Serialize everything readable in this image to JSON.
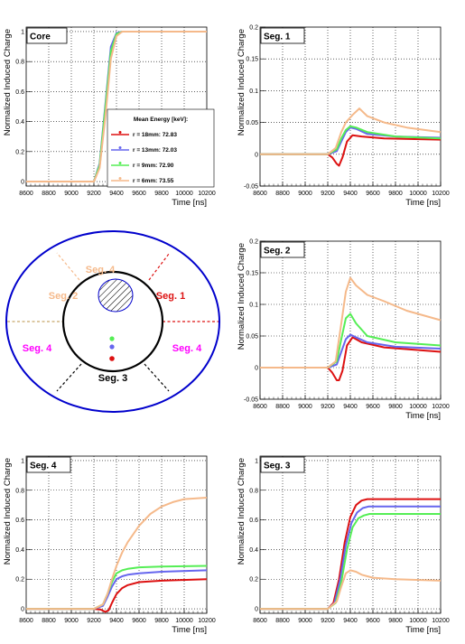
{
  "colors": {
    "r18": "#dd1111",
    "r13": "#6666ee",
    "r9": "#55ee55",
    "r6": "#f5b98a",
    "ring": "#0000cc",
    "grid": "#000000"
  },
  "legend": {
    "title": "Mean Energy [keV]:",
    "entries": [
      "r = 18mm: 72.83",
      "r = 13mm: 72.03",
      "r = 9mm: 72.90",
      "r = 6mm: 73.55"
    ]
  },
  "diagram": {
    "labels": [
      {
        "text": "Seg. 4",
        "color": "#f5b98a"
      },
      {
        "text": "Seg. 2",
        "color": "#f5b98a"
      },
      {
        "text": "Seg. 1",
        "color": "#dd1111"
      },
      {
        "text": "Seg. 4",
        "color": "#ff00ff"
      },
      {
        "text": "Seg. 4",
        "color": "#ff00ff"
      },
      {
        "text": "Seg. 3",
        "color": "#000000"
      }
    ]
  },
  "chart_data": [
    {
      "type": "line",
      "title": "Core",
      "xlabel": "Time [ns]",
      "ylabel": "Normalized Induced Charge",
      "xlim": [
        8600,
        10200
      ],
      "ylim": [
        -0.03,
        1.03
      ],
      "xticks": [
        8600,
        8800,
        9000,
        9200,
        9400,
        9600,
        9800,
        10000,
        10200
      ],
      "yticks": [
        0,
        0.2,
        0.4,
        0.6,
        0.8,
        1
      ],
      "ytick_labels": [
        "0",
        "0.2",
        "0.4",
        "0.6",
        "0.8",
        "1"
      ],
      "grid": true,
      "legend": "bottom-right",
      "series": [
        {
          "name": "r = 18mm: 72.83",
          "color_key": "r18",
          "x": [
            8600,
            9200,
            9250,
            9300,
            9350,
            9400,
            9450,
            9500,
            10200
          ],
          "values": [
            0,
            0,
            0.1,
            0.45,
            0.85,
            0.98,
            1,
            1,
            1
          ]
        },
        {
          "name": "r = 13mm: 72.03",
          "color_key": "r13",
          "x": [
            8600,
            9200,
            9250,
            9300,
            9350,
            9400,
            9450,
            9500,
            10200
          ],
          "values": [
            0,
            0,
            0.12,
            0.5,
            0.9,
            0.99,
            1,
            1,
            1
          ]
        },
        {
          "name": "r = 9mm: 72.90",
          "color_key": "r9",
          "x": [
            8600,
            9200,
            9250,
            9300,
            9350,
            9400,
            9450,
            9500,
            10200
          ],
          "values": [
            0,
            0,
            0.11,
            0.48,
            0.87,
            0.985,
            1,
            1,
            1
          ]
        },
        {
          "name": "r = 6mm: 73.55",
          "color_key": "r6",
          "x": [
            8600,
            9200,
            9250,
            9300,
            9350,
            9400,
            9450,
            9500,
            10200
          ],
          "values": [
            0,
            0,
            0.09,
            0.42,
            0.82,
            0.97,
            1,
            1,
            1
          ]
        }
      ]
    },
    {
      "type": "line",
      "title": "Seg. 1",
      "xlabel": "Time [ns]",
      "ylabel": "Normalized Induced Charge",
      "xlim": [
        8600,
        10200
      ],
      "ylim": [
        -0.05,
        0.2
      ],
      "xticks": [
        8600,
        8800,
        9000,
        9200,
        9400,
        9600,
        9800,
        10000,
        10200
      ],
      "yticks": [
        -0.05,
        0,
        0.05,
        0.1,
        0.15,
        0.2
      ],
      "ytick_labels": [
        "-0.05",
        "0",
        "0.05",
        "0.1",
        "0.15",
        "0.2"
      ],
      "grid": true,
      "series": [
        {
          "name": "r = 18mm",
          "color_key": "r18",
          "x": [
            8600,
            9200,
            9240,
            9280,
            9300,
            9330,
            9370,
            9420,
            9500,
            9700,
            10200
          ],
          "values": [
            0,
            0,
            -0.005,
            -0.015,
            -0.018,
            -0.005,
            0.02,
            0.03,
            0.028,
            0.025,
            0.023
          ]
        },
        {
          "name": "r = 13mm",
          "color_key": "r13",
          "x": [
            8600,
            9200,
            9280,
            9320,
            9360,
            9400,
            9450,
            9550,
            9800,
            10200
          ],
          "values": [
            0,
            0,
            0.005,
            0.02,
            0.035,
            0.042,
            0.04,
            0.032,
            0.028,
            0.026
          ]
        },
        {
          "name": "r = 9mm",
          "color_key": "r9",
          "x": [
            8600,
            9200,
            9280,
            9320,
            9360,
            9400,
            9450,
            9550,
            9800,
            10200
          ],
          "values": [
            0,
            0,
            0.008,
            0.025,
            0.038,
            0.044,
            0.042,
            0.035,
            0.028,
            0.025
          ]
        },
        {
          "name": "r = 6mm",
          "color_key": "r6",
          "x": [
            8600,
            9200,
            9270,
            9320,
            9360,
            9420,
            9480,
            9550,
            9700,
            9900,
            10200
          ],
          "values": [
            0,
            0,
            0.01,
            0.035,
            0.05,
            0.062,
            0.072,
            0.06,
            0.05,
            0.042,
            0.035
          ]
        }
      ]
    },
    {
      "type": "line",
      "title": "Seg. 2",
      "xlabel": "Time [ns]",
      "ylabel": "Normalized Induced Charge",
      "xlim": [
        8600,
        10200
      ],
      "ylim": [
        -0.05,
        0.2
      ],
      "xticks": [
        8600,
        8800,
        9000,
        9200,
        9400,
        9600,
        9800,
        10000,
        10200
      ],
      "yticks": [
        -0.05,
        0,
        0.05,
        0.1,
        0.15,
        0.2
      ],
      "ytick_labels": [
        "-0.05",
        "0",
        "0.05",
        "0.1",
        "0.15",
        "0.2"
      ],
      "grid": true,
      "series": [
        {
          "name": "r = 18mm",
          "color_key": "r18",
          "x": [
            8600,
            9200,
            9240,
            9280,
            9300,
            9330,
            9370,
            9420,
            9500,
            9700,
            10200
          ],
          "values": [
            0,
            0,
            -0.008,
            -0.02,
            -0.02,
            -0.005,
            0.035,
            0.048,
            0.04,
            0.032,
            0.025
          ]
        },
        {
          "name": "r = 13mm",
          "color_key": "r13",
          "x": [
            8600,
            9200,
            9280,
            9320,
            9360,
            9400,
            9450,
            9550,
            9800,
            10200
          ],
          "values": [
            0,
            0,
            0.005,
            0.025,
            0.045,
            0.052,
            0.048,
            0.04,
            0.033,
            0.03
          ]
        },
        {
          "name": "r = 9mm",
          "color_key": "r9",
          "x": [
            8600,
            9200,
            9280,
            9320,
            9360,
            9400,
            9450,
            9550,
            9800,
            10200
          ],
          "values": [
            0,
            0,
            0.01,
            0.045,
            0.078,
            0.085,
            0.07,
            0.05,
            0.04,
            0.035
          ]
        },
        {
          "name": "r = 6mm",
          "color_key": "r6",
          "x": [
            8600,
            9200,
            9270,
            9320,
            9360,
            9400,
            9450,
            9550,
            9700,
            9900,
            10200
          ],
          "values": [
            0,
            0,
            0.01,
            0.07,
            0.12,
            0.142,
            0.13,
            0.115,
            0.105,
            0.09,
            0.075
          ]
        }
      ]
    },
    {
      "type": "line",
      "title": "Seg. 4",
      "xlabel": "Time [ns]",
      "ylabel": "Normalized Induced Charge",
      "xlim": [
        8600,
        10200
      ],
      "ylim": [
        -0.03,
        1.03
      ],
      "xticks": [
        8600,
        8800,
        9000,
        9200,
        9400,
        9600,
        9800,
        10000,
        10200
      ],
      "yticks": [
        0,
        0.2,
        0.4,
        0.6,
        0.8,
        1
      ],
      "ytick_labels": [
        "0",
        "0.2",
        "0.4",
        "0.6",
        "0.8",
        "1"
      ],
      "grid": true,
      "series": [
        {
          "name": "r = 18mm",
          "color_key": "r18",
          "x": [
            8600,
            9200,
            9260,
            9300,
            9330,
            9360,
            9400,
            9450,
            9500,
            9600,
            9800,
            10200
          ],
          "values": [
            0,
            0,
            -0.005,
            -0.02,
            -0.01,
            0.04,
            0.1,
            0.14,
            0.16,
            0.18,
            0.19,
            0.2
          ]
        },
        {
          "name": "r = 13mm",
          "color_key": "r13",
          "x": [
            8600,
            9200,
            9280,
            9320,
            9360,
            9400,
            9450,
            9500,
            9600,
            9800,
            10200
          ],
          "values": [
            0,
            0,
            0.02,
            0.08,
            0.15,
            0.2,
            0.22,
            0.23,
            0.24,
            0.25,
            0.26
          ]
        },
        {
          "name": "r = 9mm",
          "color_key": "r9",
          "x": [
            8600,
            9200,
            9280,
            9320,
            9360,
            9400,
            9450,
            9500,
            9600,
            9800,
            10200
          ],
          "values": [
            0,
            0,
            0.03,
            0.1,
            0.18,
            0.24,
            0.26,
            0.27,
            0.28,
            0.285,
            0.29
          ]
        },
        {
          "name": "r = 6mm",
          "color_key": "r6",
          "x": [
            8600,
            9200,
            9280,
            9320,
            9360,
            9400,
            9450,
            9500,
            9600,
            9700,
            9800,
            9900,
            10000,
            10200
          ],
          "values": [
            0,
            0,
            0.03,
            0.1,
            0.2,
            0.29,
            0.38,
            0.45,
            0.56,
            0.64,
            0.69,
            0.72,
            0.74,
            0.75
          ]
        }
      ]
    },
    {
      "type": "line",
      "title": "Seg. 3",
      "xlabel": "Time [ns]",
      "ylabel": "Normalized Induced Charge",
      "xlim": [
        8600,
        10200
      ],
      "ylim": [
        -0.03,
        1.03
      ],
      "xticks": [
        8600,
        8800,
        9000,
        9200,
        9400,
        9600,
        9800,
        10000,
        10200
      ],
      "yticks": [
        0,
        0.2,
        0.4,
        0.6,
        0.8,
        1
      ],
      "ytick_labels": [
        "0",
        "0.2",
        "0.4",
        "0.6",
        "0.8",
        "1"
      ],
      "grid": true,
      "series": [
        {
          "name": "r = 18mm",
          "color_key": "r18",
          "x": [
            8600,
            9200,
            9250,
            9300,
            9350,
            9400,
            9450,
            9500,
            9550,
            10200
          ],
          "values": [
            0,
            0,
            0.04,
            0.2,
            0.45,
            0.62,
            0.7,
            0.73,
            0.74,
            0.74
          ]
        },
        {
          "name": "r = 13mm",
          "color_key": "r13",
          "x": [
            8600,
            9200,
            9260,
            9310,
            9360,
            9410,
            9460,
            9510,
            9560,
            10200
          ],
          "values": [
            0,
            0,
            0.04,
            0.2,
            0.43,
            0.58,
            0.65,
            0.68,
            0.69,
            0.69
          ]
        },
        {
          "name": "r = 9mm",
          "color_key": "r9",
          "x": [
            8600,
            9200,
            9270,
            9320,
            9370,
            9420,
            9470,
            9520,
            9570,
            10200
          ],
          "values": [
            0,
            0,
            0.04,
            0.18,
            0.4,
            0.55,
            0.61,
            0.63,
            0.64,
            0.64
          ]
        },
        {
          "name": "r = 6mm",
          "color_key": "r6",
          "x": [
            8600,
            9200,
            9280,
            9320,
            9360,
            9400,
            9450,
            9500,
            9600,
            9800,
            10200
          ],
          "values": [
            0,
            0,
            0.05,
            0.15,
            0.24,
            0.26,
            0.25,
            0.23,
            0.21,
            0.2,
            0.19
          ]
        }
      ]
    }
  ]
}
